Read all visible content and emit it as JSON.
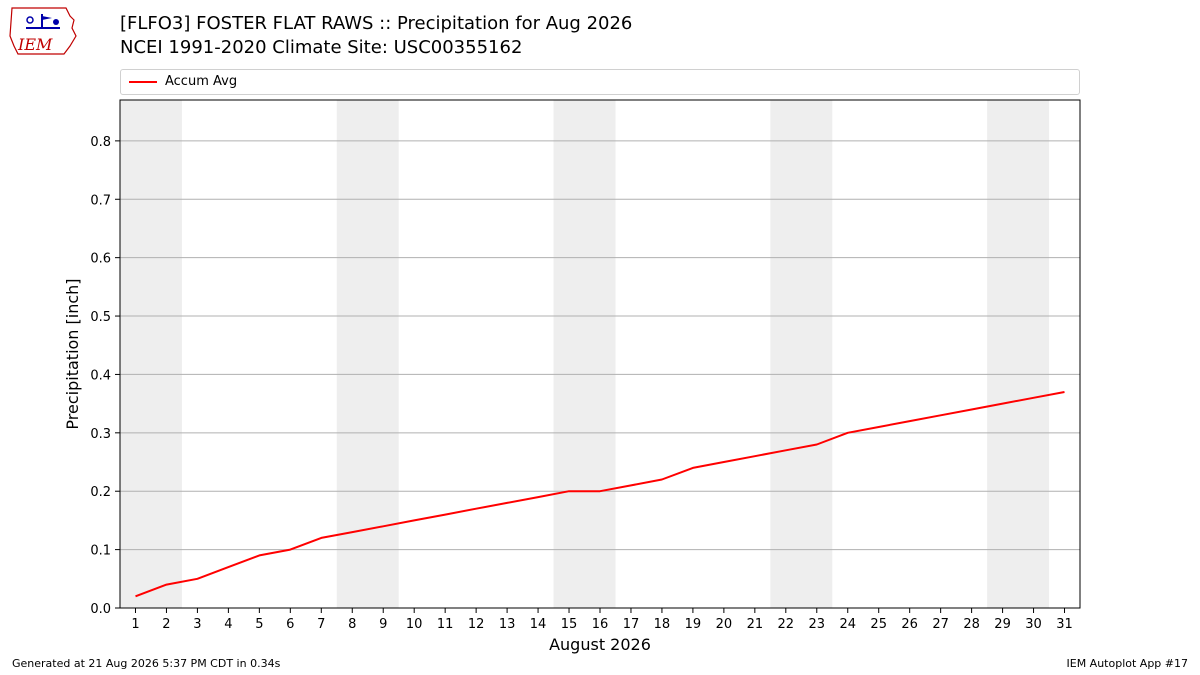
{
  "header": {
    "logo_text": "IEM",
    "title_line1": "[FLFO3] FOSTER FLAT RAWS :: Precipitation for Aug 2026",
    "title_line2": "NCEI 1991-2020 Climate Site: USC00355162"
  },
  "footer": {
    "generated": "Generated at 21 Aug 2026 5:37 PM CDT in 0.34s",
    "app": "IEM Autoplot App #17"
  },
  "colors": {
    "series": "#ff0000",
    "weekend_band": "#eeeeee",
    "grid": "#b0b0b0"
  },
  "chart_data": {
    "type": "line",
    "title": "[FLFO3] FOSTER FLAT RAWS :: Precipitation for Aug 2026",
    "subtitle": "NCEI 1991-2020 Climate Site: USC00355162",
    "xlabel": "August 2026",
    "ylabel": "Precipitation [inch]",
    "xlim": [
      0.5,
      31.5
    ],
    "ylim": [
      0,
      0.87
    ],
    "x_ticks": [
      1,
      2,
      3,
      4,
      5,
      6,
      7,
      8,
      9,
      10,
      11,
      12,
      13,
      14,
      15,
      16,
      17,
      18,
      19,
      20,
      21,
      22,
      23,
      24,
      25,
      26,
      27,
      28,
      29,
      30,
      31
    ],
    "y_ticks": [
      0.0,
      0.1,
      0.2,
      0.3,
      0.4,
      0.5,
      0.6,
      0.7,
      0.8
    ],
    "y_tick_labels": [
      "0.0",
      "0.1",
      "0.2",
      "0.3",
      "0.4",
      "0.5",
      "0.6",
      "0.7",
      "0.8"
    ],
    "grid": "horizontal",
    "legend_position": "top",
    "weekend_bands": [
      [
        0.5,
        2.5
      ],
      [
        7.5,
        9.5
      ],
      [
        14.5,
        16.5
      ],
      [
        21.5,
        23.5
      ],
      [
        28.5,
        30.5
      ]
    ],
    "series": [
      {
        "name": "Accum Avg",
        "color": "#ff0000",
        "x": [
          1,
          2,
          3,
          4,
          5,
          6,
          7,
          8,
          9,
          10,
          11,
          12,
          13,
          14,
          15,
          16,
          17,
          18,
          19,
          20,
          21,
          22,
          23,
          24,
          25,
          26,
          27,
          28,
          29,
          30,
          31
        ],
        "values": [
          0.02,
          0.04,
          0.05,
          0.07,
          0.09,
          0.1,
          0.12,
          0.13,
          0.14,
          0.15,
          0.16,
          0.17,
          0.18,
          0.19,
          0.2,
          0.2,
          0.21,
          0.22,
          0.24,
          0.25,
          0.26,
          0.27,
          0.28,
          0.3,
          0.31,
          0.32,
          0.33,
          0.34,
          0.35,
          0.36,
          0.37
        ]
      }
    ]
  }
}
